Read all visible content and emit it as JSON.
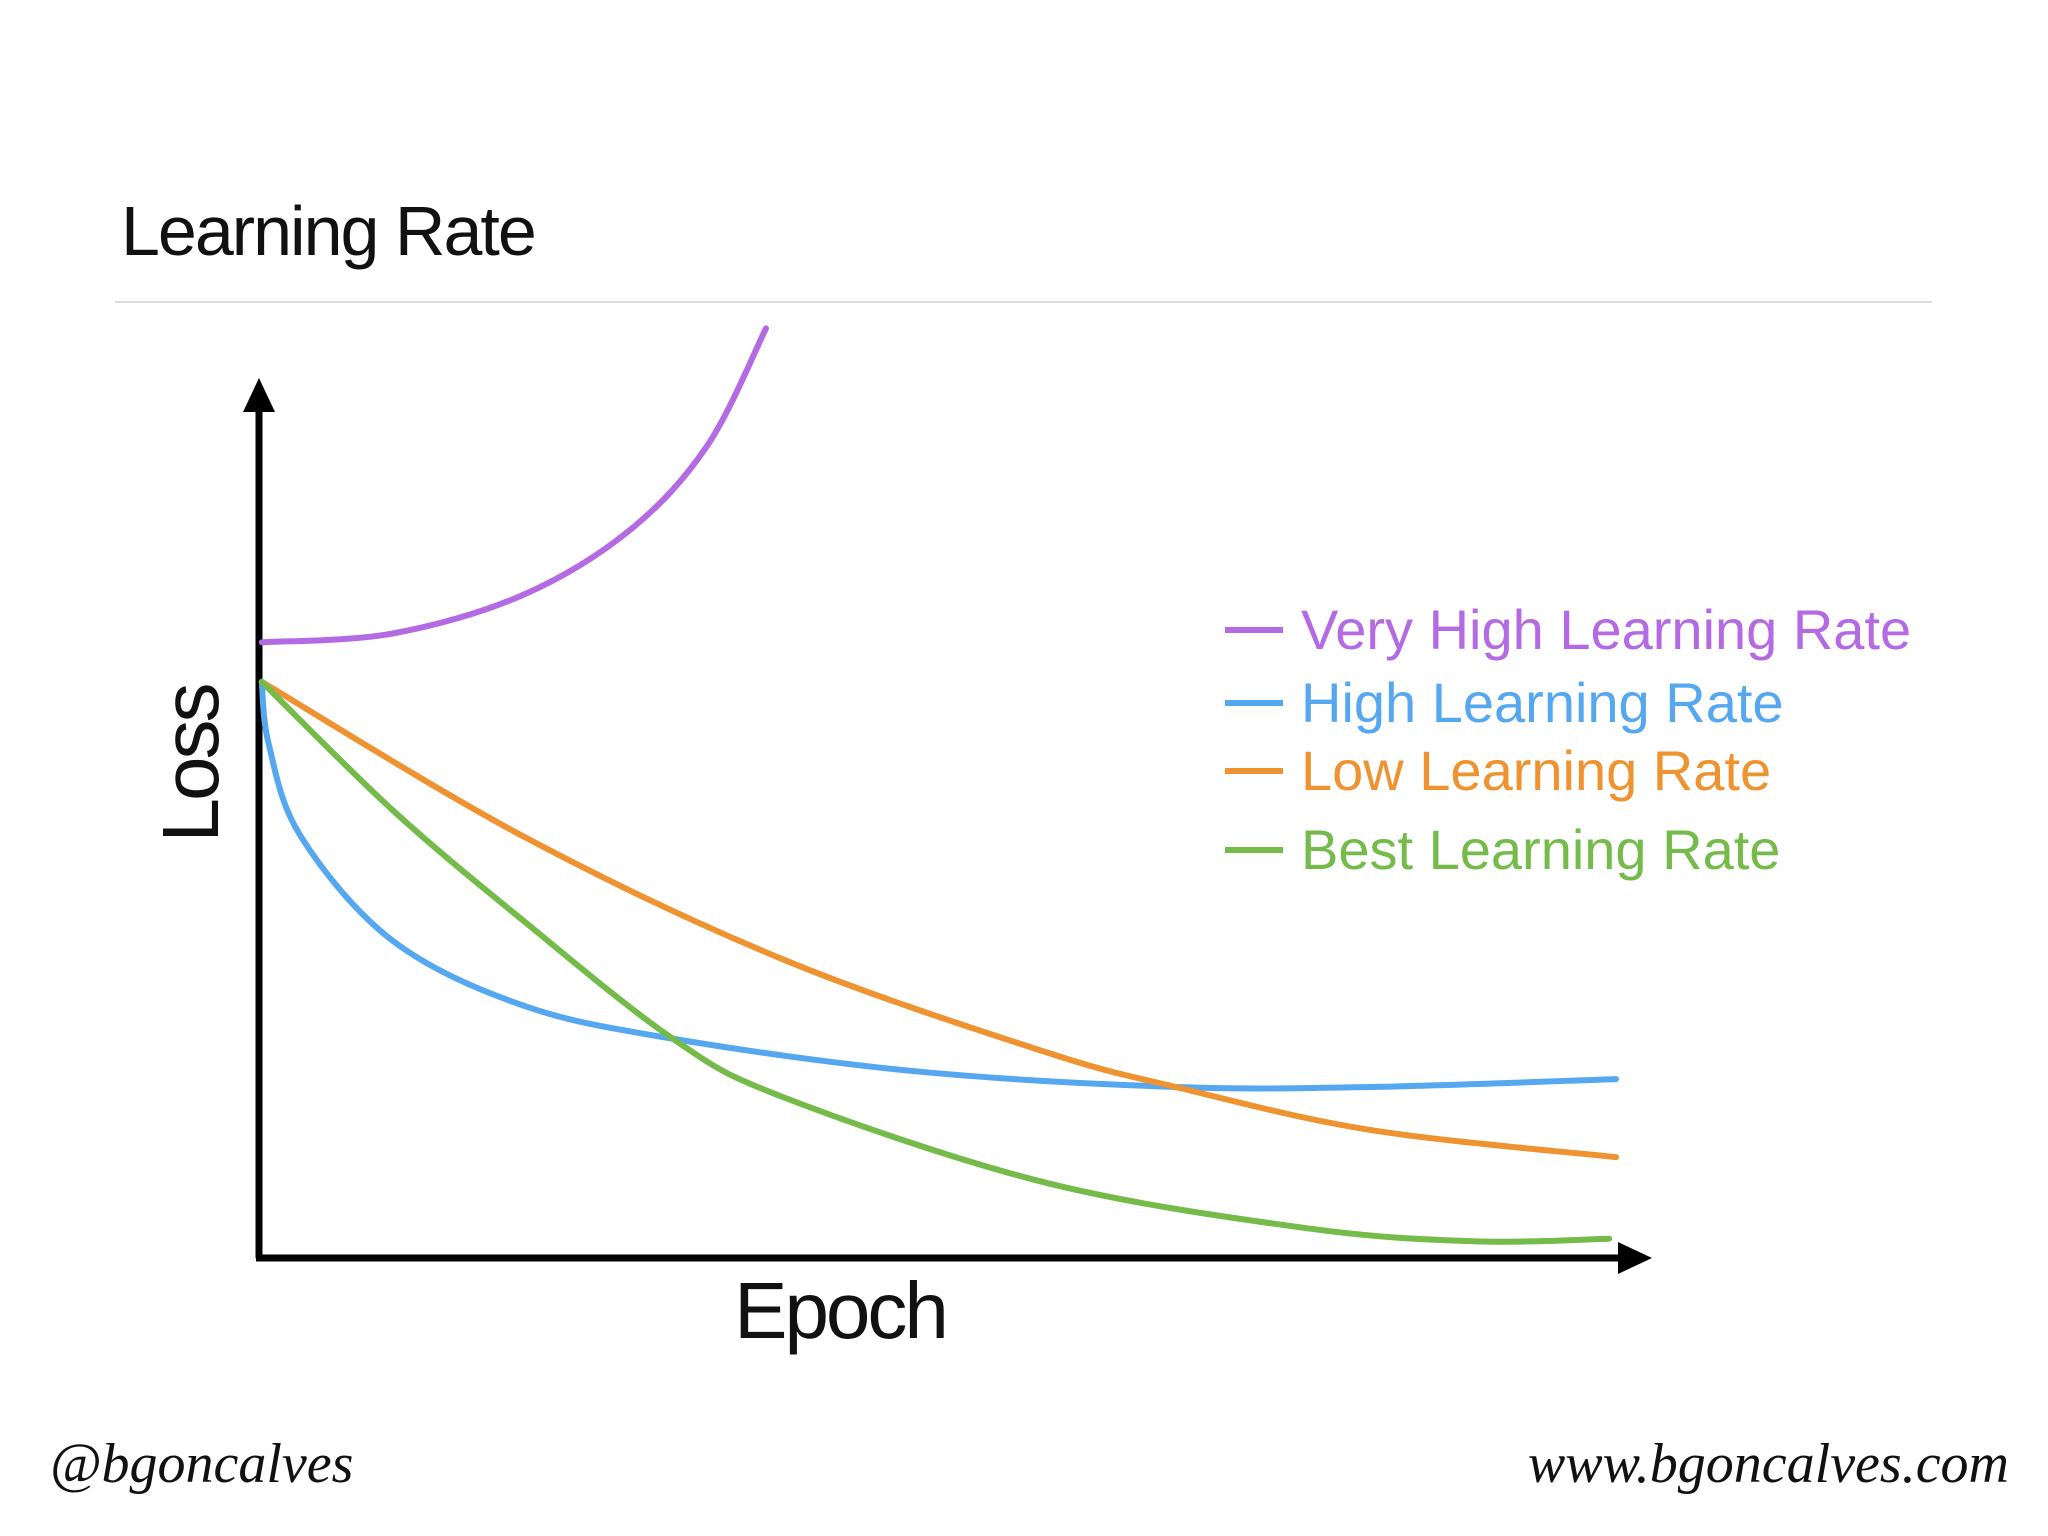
{
  "chart_data": {
    "type": "line",
    "title": "Learning Rate",
    "xlabel": "Epoch",
    "ylabel": "Loss",
    "xlim": [
      0,
      100
    ],
    "ylim": [
      0,
      100
    ],
    "legend": "right",
    "series": [
      {
        "name": "Very High Learning Rate",
        "color": "#b36ae2",
        "x": [
          0.2,
          9.6,
          19,
          26.7,
          32.3,
          36.5
        ],
        "values": [
          70.2,
          71.2,
          75.6,
          83,
          92.7,
          106
        ]
      },
      {
        "name": "High Learning Rate",
        "color": "#55a8f0",
        "x": [
          0.2,
          0.7,
          3,
          9.6,
          19,
          29.8,
          47.2,
          66,
          80,
          97.7
        ],
        "values": [
          65.7,
          58.6,
          48.1,
          36.2,
          28.8,
          25,
          21.3,
          19.5,
          19.5,
          20.4
        ]
      },
      {
        "name": "Low Learning Rate",
        "color": "#ee9330",
        "x": [
          0.2,
          19,
          37.8,
          56.6,
          66,
          80,
          97.7
        ],
        "values": [
          65.7,
          48.1,
          34,
          23.5,
          19.5,
          14.6,
          11.5
        ]
      },
      {
        "name": "Best Learning Rate",
        "color": "#74bb4a",
        "x": [
          0.2,
          9.6,
          19,
          29.8,
          37.8,
          56.6,
          75.4,
          87.6,
          97.2
        ],
        "values": [
          65.7,
          51.1,
          38.5,
          25,
          18.3,
          8.6,
          3.4,
          1.9,
          2.2
        ]
      }
    ]
  },
  "footer": {
    "left": "@bgoncalves",
    "right": "www.bgoncalves.com"
  }
}
